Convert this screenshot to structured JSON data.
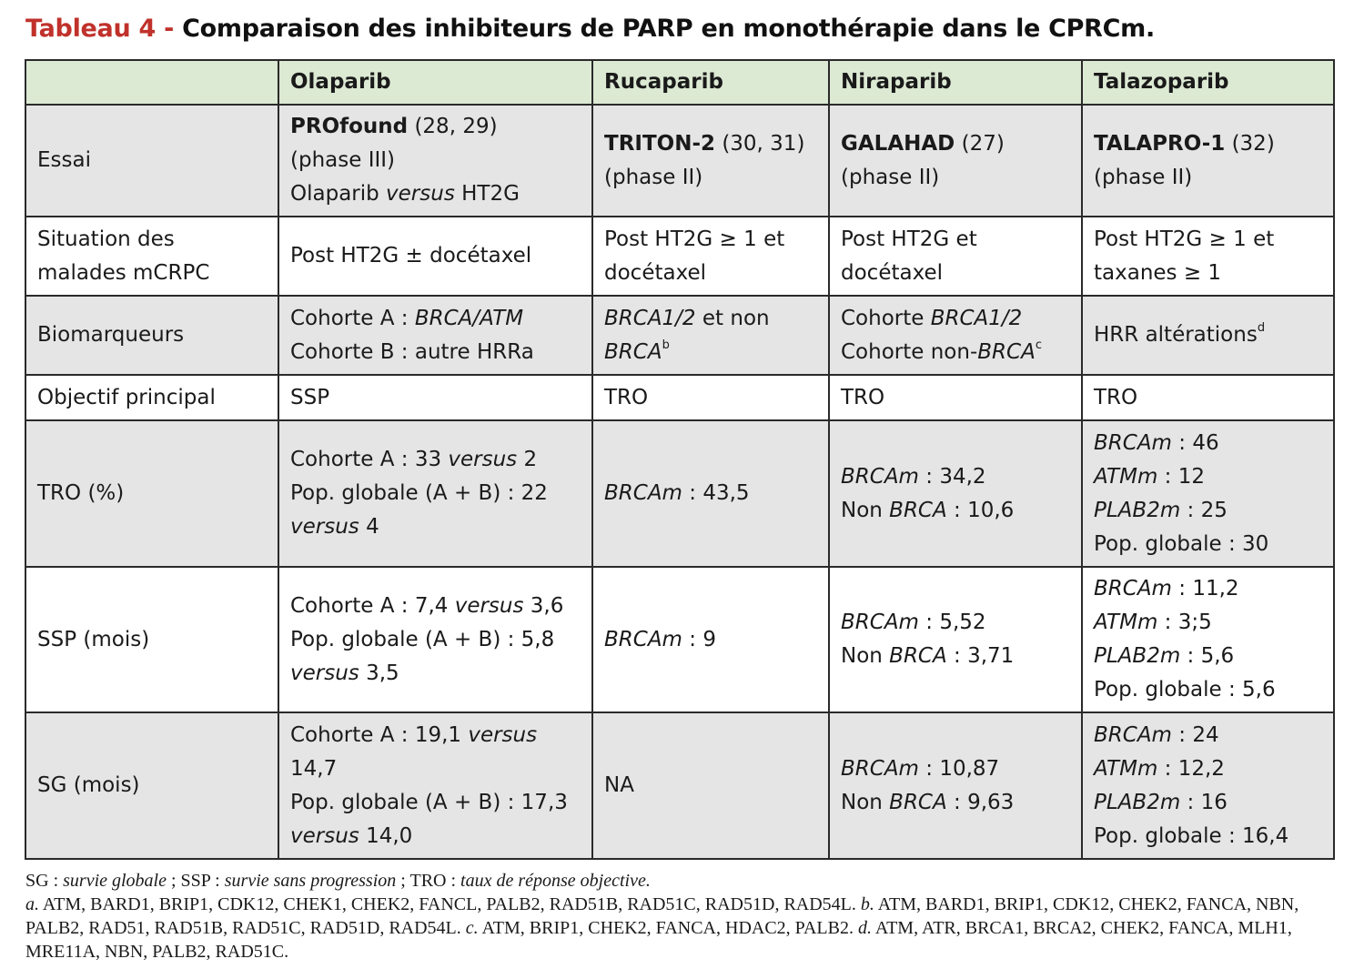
{
  "title": {
    "label": "Tableau 4 -",
    "text": "Comparaison des inhibiteurs de PARP en monothérapie dans le CPRCm."
  },
  "colors": {
    "header_bg": "#dce9d3",
    "row_grey": "#e5e5e5",
    "title_label": "#c0312b"
  },
  "table": {
    "headers": [
      "",
      "Olaparib",
      "Rucaparib",
      "Niraparib",
      "Talazoparib"
    ],
    "rows": {
      "essai": {
        "label": "Essai",
        "olaparib": {
          "name": "PROfound",
          "ref": "(28, 29)",
          "phase": "(phase III)",
          "comp_a": "Olaparib",
          "comp_i": "versus",
          "comp_b": "HT2G"
        },
        "rucaparib": {
          "name": "TRITON-2",
          "ref": "(30, 31)",
          "phase": "(phase II)"
        },
        "niraparib": {
          "name": "GALAHAD",
          "ref": "(27)",
          "phase": "(phase II)"
        },
        "talazoparib": {
          "name": "TALAPRO-1",
          "ref": "(32)",
          "phase": "(phase II)"
        }
      },
      "situation": {
        "label_1": "Situation des",
        "label_2": "malades mCRPC",
        "olaparib": "Post HT2G ± docétaxel",
        "rucaparib": [
          "Post HT2G ≥ 1 et",
          "docétaxel"
        ],
        "niraparib": [
          "Post HT2G et",
          "docétaxel"
        ],
        "talazoparib": [
          "Post HT2G ≥ 1 et",
          "taxanes ≥ 1"
        ]
      },
      "biomarqueurs": {
        "label": "Biomarqueurs",
        "olaparib": {
          "l1_a": "Cohorte A : ",
          "l1_i": "BRCA/ATM",
          "l2": "Cohorte B : autre HRRa"
        },
        "rucaparib": {
          "l1_i": "BRCA1/2",
          "l1_b": " et non",
          "l2_i": "BRCA",
          "l2_sup": "b"
        },
        "niraparib": {
          "l1_a": "Cohorte ",
          "l1_i": "BRCA1/2",
          "l2_a": "Cohorte non-",
          "l2_i": "BRCA",
          "l2_sup": "c"
        },
        "talazoparib": {
          "text": "HRR altérations",
          "sup": "d"
        }
      },
      "objectif": {
        "label": "Objectif principal",
        "olaparib": "SSP",
        "rucaparib": "TRO",
        "niraparib": "TRO",
        "talazoparib": "TRO"
      },
      "tro": {
        "label": "TRO (%)",
        "olaparib": {
          "l1_a": "Cohorte A : 33 ",
          "l1_i": "versus",
          "l1_b": " 2",
          "l2": "Pop. globale (A + B) : 22",
          "l3_i": "versus",
          "l3_b": " 4"
        },
        "rucaparib": {
          "i": "BRCAm",
          "t": " : 43,5"
        },
        "niraparib": [
          {
            "i": "BRCAm",
            "t": " : 34,2"
          },
          {
            "a": "Non ",
            "i": "BRCA",
            "t": " : 10,6"
          }
        ],
        "talazoparib": [
          {
            "i": "BRCAm",
            "t": " : 46"
          },
          {
            "i": "ATMm",
            "t": " : 12"
          },
          {
            "i": "PLAB2m",
            "t": " : 25"
          },
          {
            "t": "Pop. globale : 30"
          }
        ]
      },
      "ssp": {
        "label": "SSP (mois)",
        "olaparib": {
          "l1_a": "Cohorte A : 7,4 ",
          "l1_i": "versus",
          "l1_b": " 3,6",
          "l2": "Pop. globale (A + B) : 5,8",
          "l3_i": "versus",
          "l3_b": " 3,5"
        },
        "rucaparib": {
          "i": "BRCAm",
          "t": " : 9"
        },
        "niraparib": [
          {
            "i": "BRCAm",
            "t": " : 5,52"
          },
          {
            "a": "Non ",
            "i": "BRCA",
            "t": " : 3,71"
          }
        ],
        "talazoparib": [
          {
            "i": "BRCAm",
            "t": " :  11,2"
          },
          {
            "i": "ATMm",
            "t": " : 3;5"
          },
          {
            "i": "PLAB2m",
            "t": " : 5,6"
          },
          {
            "t": "Pop. globale : 5,6"
          }
        ]
      },
      "sg": {
        "label": "SG (mois)",
        "olaparib": {
          "l1_a": "Cohorte A : 19,1 ",
          "l1_i": "versus",
          "l2": "14,7",
          "l3": "Pop. globale (A + B) : 17,3",
          "l4_i": "versus",
          "l4_b": " 14,0"
        },
        "rucaparib": "NA",
        "niraparib": [
          {
            "i": "BRCAm",
            "t": " : 10,87"
          },
          {
            "a": "Non ",
            "i": "BRCA",
            "t": " : 9,63"
          }
        ],
        "talazoparib": [
          {
            "i": "BRCAm",
            "t": " :  24"
          },
          {
            "i": "ATMm",
            "t": " : 12,2"
          },
          {
            "i": "PLAB2m",
            "t": " : 16"
          },
          {
            "t": "Pop. globale : 16,4"
          }
        ]
      }
    }
  },
  "notes": {
    "abbr_sg": "SG : ",
    "abbr_sg_i": "survie globale",
    "abbr_ssp": " ; SSP : ",
    "abbr_ssp_i": "survie sans progression",
    "abbr_tro": " ; TRO : ",
    "abbr_tro_i": "taux de réponse objective.",
    "a_label": "a.",
    "a_text": " ATM, BARD1, BRIP1, CDK12, CHEK1, CHEK2, FANCL, PALB2, RAD51B, RAD51C, RAD51D, RAD54L. ",
    "b_label": "b.",
    "b_text": " ATM, BARD1, BRIP1, CDK12, CHEK2, FANCA, NBN, PALB2, RAD51, RAD51B, RAD51C, RAD51D, RAD54L. ",
    "c_label": "c.",
    "c_text": " ATM, BRIP1, CHEK2, FANCA, HDAC2, PALB2. ",
    "d_label": "d.",
    "d_text": " ATM, ATR, BRCA1, BRCA2, CHEK2, FANCA, MLH1, MRE11A, NBN, PALB2, RAD51C."
  }
}
